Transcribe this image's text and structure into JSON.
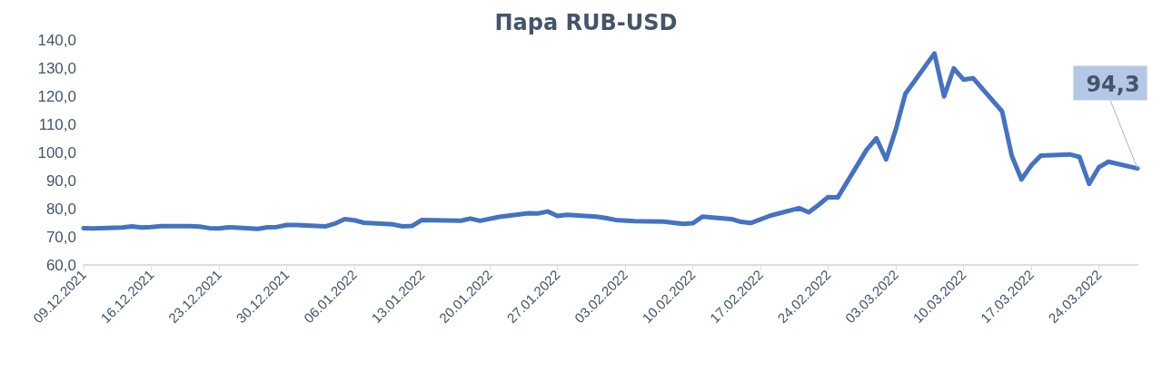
{
  "chart_data": {
    "type": "line",
    "title": "Пара RUB-USD",
    "x": [
      "2021-12-09",
      "2021-12-10",
      "2021-12-13",
      "2021-12-14",
      "2021-12-15",
      "2021-12-16",
      "2021-12-17",
      "2021-12-20",
      "2021-12-21",
      "2021-12-22",
      "2021-12-23",
      "2021-12-24",
      "2021-12-27",
      "2021-12-28",
      "2021-12-29",
      "2021-12-30",
      "2021-12-31",
      "2022-01-03",
      "2022-01-04",
      "2022-01-05",
      "2022-01-06",
      "2022-01-07",
      "2022-01-10",
      "2022-01-11",
      "2022-01-12",
      "2022-01-13",
      "2022-01-17",
      "2022-01-18",
      "2022-01-19",
      "2022-01-21",
      "2022-01-24",
      "2022-01-25",
      "2022-01-26",
      "2022-01-27",
      "2022-01-28",
      "2022-01-31",
      "2022-02-01",
      "2022-02-02",
      "2022-02-04",
      "2022-02-07",
      "2022-02-09",
      "2022-02-10",
      "2022-02-11",
      "2022-02-14",
      "2022-02-15",
      "2022-02-16",
      "2022-02-18",
      "2022-02-21",
      "2022-02-22",
      "2022-02-23",
      "2022-02-24",
      "2022-02-25",
      "2022-02-28",
      "2022-03-01",
      "2022-03-02",
      "2022-03-03",
      "2022-03-04",
      "2022-03-07",
      "2022-03-08",
      "2022-03-09",
      "2022-03-10",
      "2022-03-11",
      "2022-03-14",
      "2022-03-15",
      "2022-03-16",
      "2022-03-17",
      "2022-03-18",
      "2022-03-21",
      "2022-03-22",
      "2022-03-23",
      "2022-03-24",
      "2022-03-25",
      "2022-03-28"
    ],
    "series": [
      {
        "color": "#4472c4",
        "values": [
          73.1,
          73.0,
          73.3,
          73.7,
          73.3,
          73.5,
          73.8,
          73.8,
          73.6,
          73.1,
          73.0,
          73.4,
          72.8,
          73.4,
          73.5,
          74.2,
          74.2,
          73.7,
          74.7,
          76.3,
          75.9,
          75.0,
          74.4,
          73.7,
          73.9,
          76.0,
          75.7,
          76.5,
          75.7,
          77.1,
          78.4,
          78.3,
          79.0,
          77.4,
          77.8,
          77.2,
          76.7,
          76.0,
          75.6,
          75.4,
          74.6,
          74.8,
          77.2,
          76.3,
          75.3,
          74.9,
          77.5,
          80.2,
          78.7,
          81.3,
          84.1,
          84.0,
          101.0,
          105.0,
          97.5,
          108.1,
          120.9,
          135.2,
          119.9,
          129.9,
          125.9,
          126.4,
          114.6,
          98.8,
          90.4,
          95.3,
          98.9,
          99.3,
          98.4,
          88.8,
          94.7,
          96.7,
          94.3
        ],
        "value_labels": [
          null,
          null,
          null,
          null,
          null,
          null,
          null,
          null,
          null,
          null,
          null,
          null,
          null,
          null,
          null,
          null,
          null,
          null,
          null,
          null,
          null,
          null,
          null,
          null,
          null,
          null,
          null,
          null,
          null,
          null,
          null,
          null,
          null,
          null,
          null,
          null,
          null,
          null,
          null,
          null,
          null,
          null,
          null,
          null,
          null,
          null,
          null,
          null,
          null,
          null,
          null,
          null,
          null,
          null,
          null,
          null,
          null,
          null,
          null,
          null,
          null,
          null,
          null,
          null,
          null,
          null,
          null,
          null,
          null,
          null,
          null,
          null,
          "94,3"
        ]
      }
    ],
    "xlim": [
      "2021-12-09",
      "2022-03-28"
    ],
    "xticks": [
      {
        "value": "2021-12-09",
        "label": "09.12.2021"
      },
      {
        "value": "2021-12-16",
        "label": "16.12.2021"
      },
      {
        "value": "2021-12-23",
        "label": "23.12.2021"
      },
      {
        "value": "2021-12-30",
        "label": "30.12.2021"
      },
      {
        "value": "2022-01-06",
        "label": "06.01.2022"
      },
      {
        "value": "2022-01-13",
        "label": "13.01.2022"
      },
      {
        "value": "2022-01-20",
        "label": "20.01.2022"
      },
      {
        "value": "2022-01-27",
        "label": "27.01.2022"
      },
      {
        "value": "2022-02-03",
        "label": "03.02.2022"
      },
      {
        "value": "2022-02-10",
        "label": "10.02.2022"
      },
      {
        "value": "2022-02-17",
        "label": "17.02.2022"
      },
      {
        "value": "2022-02-24",
        "label": "24.02.2022"
      },
      {
        "value": "2022-03-03",
        "label": "03.03.2022"
      },
      {
        "value": "2022-03-10",
        "label": "10.03.2022"
      },
      {
        "value": "2022-03-17",
        "label": "17.03.2022"
      },
      {
        "value": "2022-03-24",
        "label": "24.03.2022"
      }
    ],
    "ylim": [
      60,
      140
    ],
    "yticks": [
      {
        "value": 60,
        "label": "60,0"
      },
      {
        "value": 70,
        "label": "70,0"
      },
      {
        "value": 80,
        "label": "80,0"
      },
      {
        "value": 90,
        "label": "90,0"
      },
      {
        "value": 100,
        "label": "100,0"
      },
      {
        "value": 110,
        "label": "110,0"
      },
      {
        "value": 120,
        "label": "120,0"
      },
      {
        "value": 130,
        "label": "130,0"
      },
      {
        "value": 140,
        "label": "140,0"
      }
    ],
    "grid": false,
    "marker": "none",
    "line_style": "solid"
  }
}
